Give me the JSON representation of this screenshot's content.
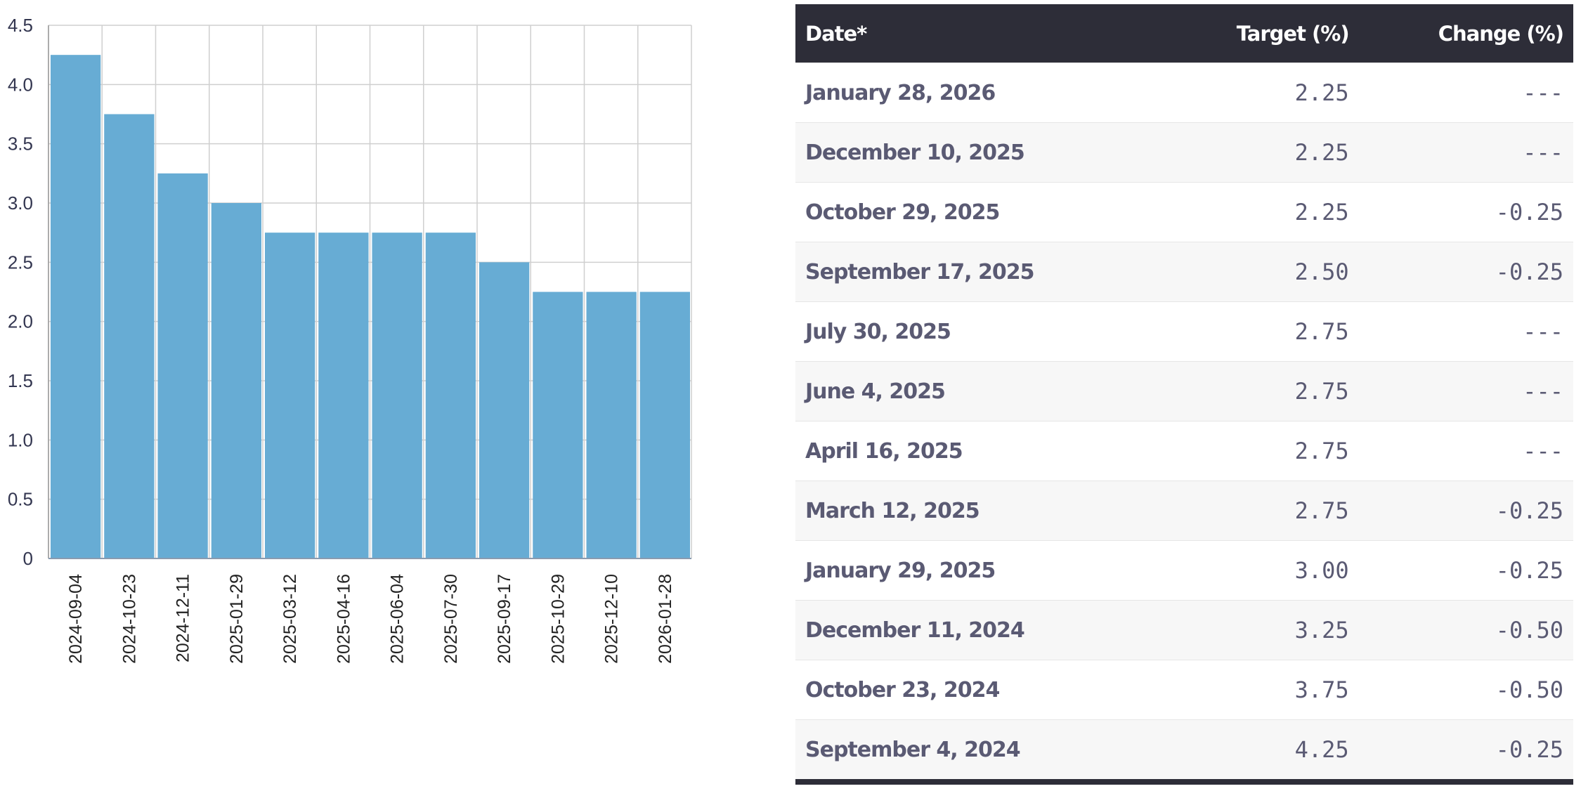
{
  "chart_data": {
    "type": "bar",
    "title": "",
    "xlabel": "",
    "ylabel": "",
    "ylim": [
      0,
      4.5
    ],
    "yticks": [
      "0",
      "0.5",
      "1.0",
      "1.5",
      "2.0",
      "2.5",
      "3.0",
      "3.5",
      "4.0",
      "4.5"
    ],
    "grid": true,
    "categories": [
      "2024-09-04",
      "2024-10-23",
      "2024-12-11",
      "2025-01-29",
      "2025-03-12",
      "2025-04-16",
      "2025-06-04",
      "2025-07-30",
      "2025-09-17",
      "2025-10-29",
      "2025-12-10",
      "2026-01-28"
    ],
    "values": [
      4.25,
      3.75,
      3.25,
      3.0,
      2.75,
      2.75,
      2.75,
      2.75,
      2.5,
      2.25,
      2.25,
      2.25
    ],
    "bar_color": "#67acd4"
  },
  "table": {
    "headers": [
      "Date*",
      "Target (%)",
      "Change (%)"
    ],
    "rows": [
      {
        "date": "January 28, 2026",
        "target": "2.25",
        "change": "---"
      },
      {
        "date": "December 10, 2025",
        "target": "2.25",
        "change": "---"
      },
      {
        "date": "October 29, 2025",
        "target": "2.25",
        "change": "-0.25"
      },
      {
        "date": "September 17, 2025",
        "target": "2.50",
        "change": "-0.25"
      },
      {
        "date": "July 30, 2025",
        "target": "2.75",
        "change": "---"
      },
      {
        "date": "June 4, 2025",
        "target": "2.75",
        "change": "---"
      },
      {
        "date": "April 16, 2025",
        "target": "2.75",
        "change": "---"
      },
      {
        "date": "March 12, 2025",
        "target": "2.75",
        "change": "-0.25"
      },
      {
        "date": "January 29, 2025",
        "target": "3.00",
        "change": "-0.25"
      },
      {
        "date": "December 11, 2024",
        "target": "3.25",
        "change": "-0.50"
      },
      {
        "date": "October 23, 2024",
        "target": "3.75",
        "change": "-0.50"
      },
      {
        "date": "September 4, 2024",
        "target": "4.25",
        "change": "-0.25"
      }
    ]
  }
}
